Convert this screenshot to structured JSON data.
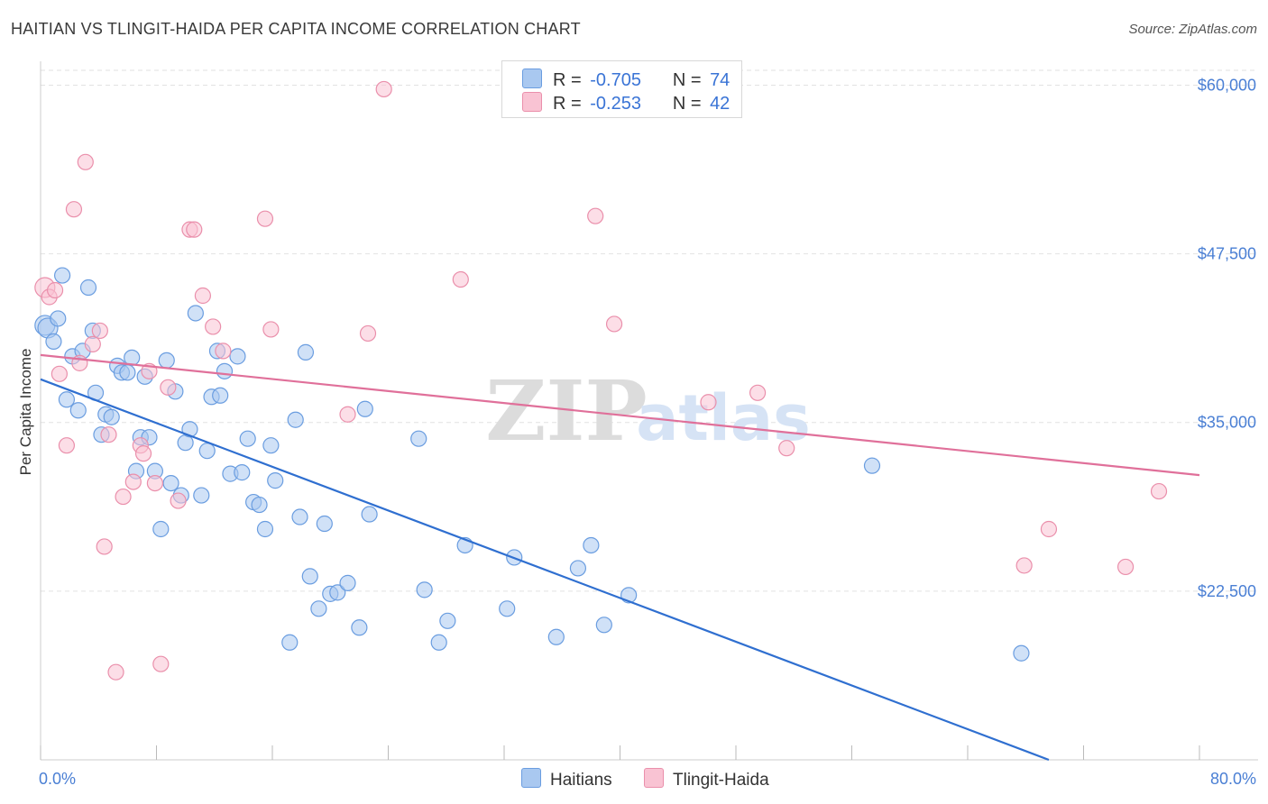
{
  "title": "HAITIAN VS TLINGIT-HAIDA PER CAPITA INCOME CORRELATION CHART",
  "source": "Source: ZipAtlas.com",
  "watermark": {
    "zip": "ZIP",
    "atlas": "atlas"
  },
  "legend": {
    "r_label": "R =",
    "n_label": "N =",
    "rows": [
      {
        "r": "-0.705",
        "n": "74",
        "color": "#a9c8f0",
        "border": "#6a9de0"
      },
      {
        "r": "-0.253",
        "n": "42",
        "color": "#f9c3d3",
        "border": "#ea8fab"
      }
    ]
  },
  "bottom_legend": [
    {
      "label": "Haitians",
      "color": "#a9c8f0",
      "border": "#6a9de0"
    },
    {
      "label": "Tlingit-Haida",
      "color": "#f9c3d3",
      "border": "#ea8fab"
    }
  ],
  "chart_data": {
    "type": "scatter",
    "title": "HAITIAN VS TLINGIT-HAIDA PER CAPITA INCOME CORRELATION CHART",
    "xlabel": "",
    "ylabel": "Per Capita Income",
    "xlim": [
      0,
      80
    ],
    "ylim": [
      10000,
      61500
    ],
    "x_tick_labels": [
      "0.0%",
      "80.0%"
    ],
    "y_ticks": [
      22500,
      35000,
      47500,
      60000
    ],
    "y_tick_labels": [
      "$22,500",
      "$35,000",
      "$47,500",
      "$60,000"
    ],
    "grid": true,
    "legend_position": "top-center",
    "series": [
      {
        "name": "Haitians",
        "color": "#6a9de0",
        "fill": "#a9c8f0",
        "trend": {
          "x": [
            0,
            69.6
          ],
          "y": [
            38200,
            10000
          ],
          "color": "#2f6fd0"
        },
        "points": [
          [
            0.3,
            42200
          ],
          [
            0.5,
            42000
          ],
          [
            0.9,
            41000
          ],
          [
            1.2,
            42700
          ],
          [
            1.5,
            45900
          ],
          [
            1.8,
            36700
          ],
          [
            2.2,
            39900
          ],
          [
            2.6,
            35900
          ],
          [
            2.9,
            40300
          ],
          [
            3.3,
            45000
          ],
          [
            3.6,
            41800
          ],
          [
            3.8,
            37200
          ],
          [
            4.2,
            34100
          ],
          [
            4.5,
            35600
          ],
          [
            4.9,
            35400
          ],
          [
            5.3,
            39200
          ],
          [
            5.6,
            38700
          ],
          [
            6.0,
            38700
          ],
          [
            6.3,
            39800
          ],
          [
            6.6,
            31400
          ],
          [
            6.9,
            33900
          ],
          [
            7.2,
            38400
          ],
          [
            7.5,
            33900
          ],
          [
            7.9,
            31400
          ],
          [
            8.3,
            27100
          ],
          [
            8.7,
            39600
          ],
          [
            9.0,
            30500
          ],
          [
            9.3,
            37300
          ],
          [
            9.7,
            29600
          ],
          [
            10.0,
            33500
          ],
          [
            10.3,
            34500
          ],
          [
            10.7,
            43100
          ],
          [
            11.1,
            29600
          ],
          [
            11.5,
            32900
          ],
          [
            11.8,
            36900
          ],
          [
            12.2,
            40300
          ],
          [
            12.4,
            37000
          ],
          [
            12.7,
            38800
          ],
          [
            13.1,
            31200
          ],
          [
            13.6,
            39900
          ],
          [
            13.9,
            31300
          ],
          [
            14.3,
            33800
          ],
          [
            14.7,
            29100
          ],
          [
            15.1,
            28900
          ],
          [
            15.5,
            27100
          ],
          [
            15.9,
            33300
          ],
          [
            16.2,
            30700
          ],
          [
            17.2,
            18700
          ],
          [
            17.6,
            35200
          ],
          [
            17.9,
            28000
          ],
          [
            18.3,
            40200
          ],
          [
            18.6,
            23600
          ],
          [
            19.2,
            21200
          ],
          [
            19.6,
            27500
          ],
          [
            20.0,
            22300
          ],
          [
            20.5,
            22400
          ],
          [
            21.2,
            23100
          ],
          [
            22.0,
            19800
          ],
          [
            22.4,
            36000
          ],
          [
            22.7,
            28200
          ],
          [
            26.1,
            33800
          ],
          [
            26.5,
            22600
          ],
          [
            27.5,
            18700
          ],
          [
            28.1,
            20300
          ],
          [
            29.3,
            25900
          ],
          [
            32.2,
            21200
          ],
          [
            32.7,
            25000
          ],
          [
            35.6,
            19100
          ],
          [
            37.1,
            24200
          ],
          [
            38.0,
            25900
          ],
          [
            38.9,
            20000
          ],
          [
            40.6,
            22200
          ],
          [
            57.4,
            31800
          ],
          [
            67.7,
            17900
          ]
        ]
      },
      {
        "name": "Tlingit-Haida",
        "color": "#ea8fab",
        "fill": "#f9c3d3",
        "trend": {
          "x": [
            0,
            80
          ],
          "y": [
            40000,
            31100
          ],
          "color": "#e0709a"
        },
        "points": [
          [
            0.3,
            45000
          ],
          [
            0.6,
            44300
          ],
          [
            1.0,
            44800
          ],
          [
            1.3,
            38600
          ],
          [
            1.8,
            33300
          ],
          [
            2.3,
            50800
          ],
          [
            2.7,
            39400
          ],
          [
            3.1,
            54300
          ],
          [
            3.6,
            40800
          ],
          [
            4.1,
            41800
          ],
          [
            4.4,
            25800
          ],
          [
            4.7,
            34100
          ],
          [
            5.2,
            16500
          ],
          [
            5.7,
            29500
          ],
          [
            6.4,
            30600
          ],
          [
            6.9,
            33300
          ],
          [
            7.1,
            32700
          ],
          [
            7.5,
            38800
          ],
          [
            7.9,
            30500
          ],
          [
            8.3,
            17100
          ],
          [
            8.8,
            37600
          ],
          [
            9.5,
            29200
          ],
          [
            10.3,
            49300
          ],
          [
            10.6,
            49300
          ],
          [
            11.2,
            44400
          ],
          [
            11.9,
            42100
          ],
          [
            12.6,
            40300
          ],
          [
            15.5,
            50100
          ],
          [
            15.9,
            41900
          ],
          [
            21.2,
            35600
          ],
          [
            22.6,
            41600
          ],
          [
            23.7,
            59700
          ],
          [
            29.0,
            45600
          ],
          [
            38.3,
            50300
          ],
          [
            39.6,
            42300
          ],
          [
            46.1,
            36500
          ],
          [
            49.5,
            37200
          ],
          [
            51.5,
            33100
          ],
          [
            67.9,
            24400
          ],
          [
            69.6,
            27100
          ],
          [
            74.9,
            24300
          ],
          [
            77.2,
            29900
          ]
        ]
      }
    ]
  }
}
